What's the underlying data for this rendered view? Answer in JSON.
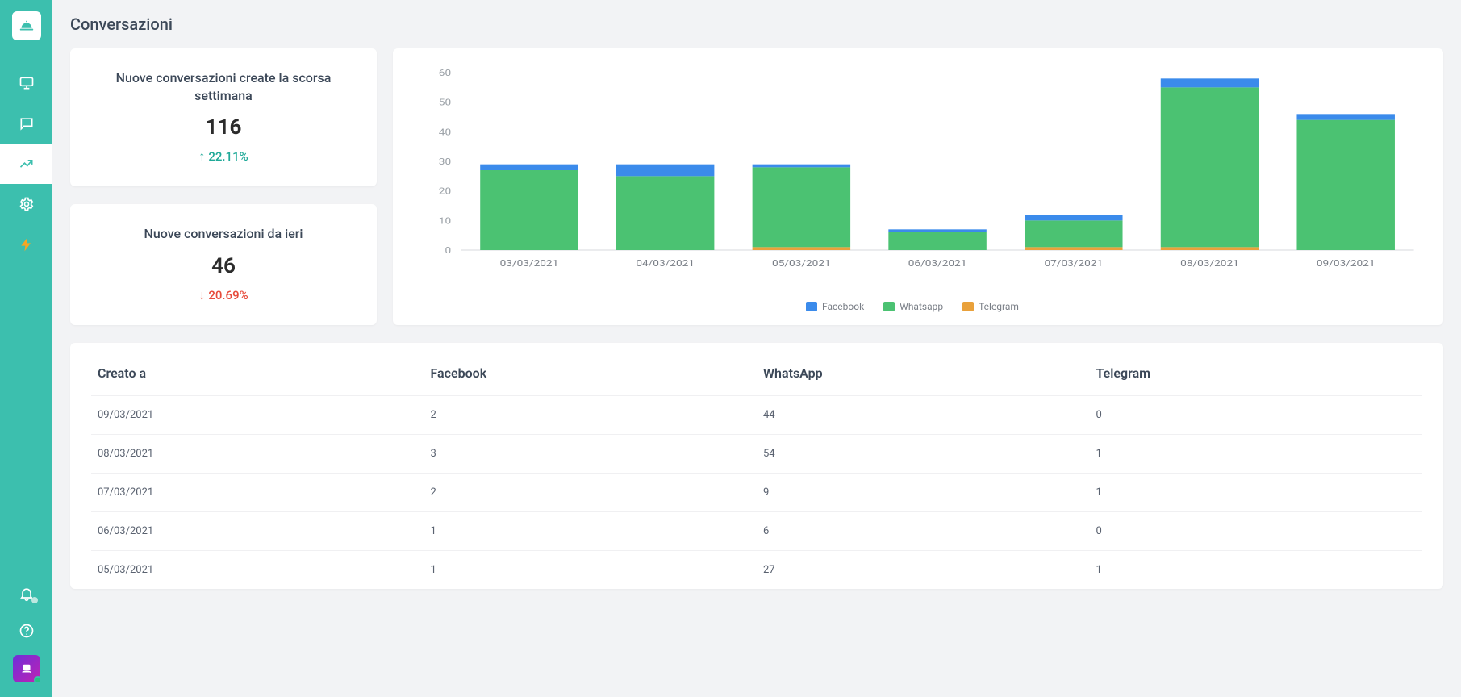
{
  "page": {
    "title": "Conversazioni"
  },
  "colors": {
    "facebook": "#3b8beb",
    "whatsapp": "#4bc272",
    "telegram": "#e9a13b",
    "up": "#1fa998",
    "down": "#e74c3c",
    "card_bg": "#ffffff",
    "page_bg": "#f2f3f5",
    "sidebar_bg": "#3cbfae",
    "axis_text": "#9aa0a6",
    "grid": "#e9ebee"
  },
  "cards": [
    {
      "title": "Nuove conversazioni create la scorsa settimana",
      "value": "116",
      "delta_direction": "up",
      "delta_text": "22.11%"
    },
    {
      "title": "Nuove conversazioni da ieri",
      "value": "46",
      "delta_direction": "down",
      "delta_text": "20.69%"
    }
  ],
  "chart": {
    "type": "stacked-bar",
    "y": {
      "min": 0,
      "max": 60,
      "step": 10
    },
    "categories": [
      "03/03/2021",
      "04/03/2021",
      "05/03/2021",
      "06/03/2021",
      "07/03/2021",
      "08/03/2021",
      "09/03/2021"
    ],
    "series": [
      {
        "name": "Telegram",
        "color": "#e9a13b",
        "values": [
          0,
          0,
          1,
          0,
          1,
          1,
          0
        ]
      },
      {
        "name": "Whatsapp",
        "color": "#4bc272",
        "values": [
          27,
          25,
          27,
          6,
          9,
          54,
          44
        ]
      },
      {
        "name": "Facebook",
        "color": "#3b8beb",
        "values": [
          2,
          4,
          1,
          1,
          2,
          3,
          2
        ]
      }
    ],
    "legend_order": [
      "Facebook",
      "Whatsapp",
      "Telegram"
    ],
    "bar_width_ratio": 0.72,
    "background": "#ffffff",
    "font_size_axis": 11
  },
  "table": {
    "columns": [
      "Creato a",
      "Facebook",
      "WhatsApp",
      "Telegram"
    ],
    "rows": [
      [
        "09/03/2021",
        "2",
        "44",
        "0"
      ],
      [
        "08/03/2021",
        "3",
        "54",
        "1"
      ],
      [
        "07/03/2021",
        "2",
        "9",
        "1"
      ],
      [
        "06/03/2021",
        "1",
        "6",
        "0"
      ],
      [
        "05/03/2021",
        "1",
        "27",
        "1"
      ]
    ]
  },
  "sidebar": {
    "items_top": [
      {
        "id": "dashboard",
        "icon": "monitor"
      },
      {
        "id": "conversations",
        "icon": "message"
      },
      {
        "id": "analytics",
        "icon": "trend",
        "active": true
      },
      {
        "id": "settings",
        "icon": "gear"
      },
      {
        "id": "automations",
        "icon": "bolt"
      }
    ]
  }
}
